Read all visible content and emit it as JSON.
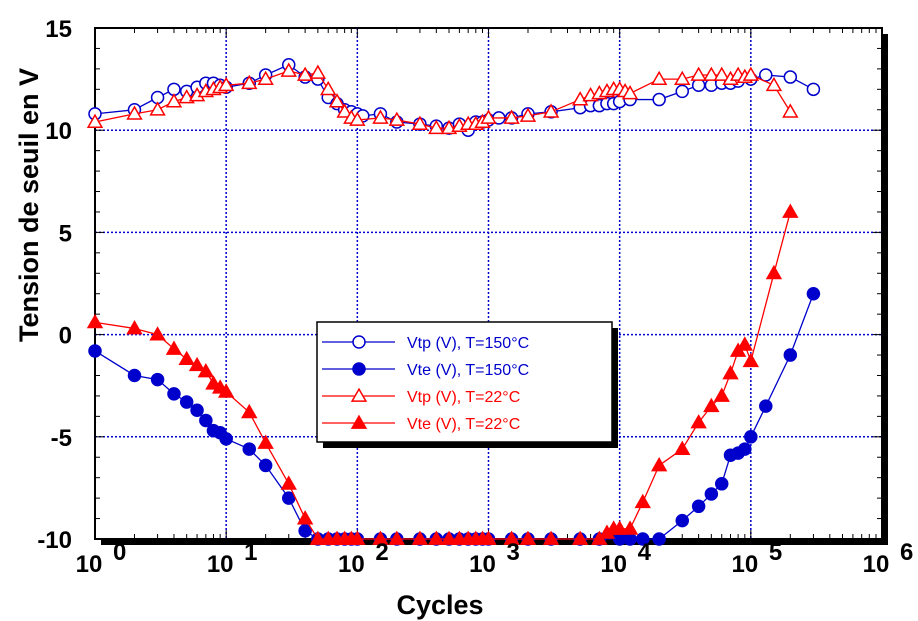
{
  "chart_data": {
    "type": "scatter",
    "title": "",
    "xlabel": "Cycles",
    "ylabel": "Tension de seuil en V",
    "xscale": "log",
    "xlim": [
      1,
      1000000
    ],
    "ylim": [
      -10,
      15
    ],
    "grid": true,
    "legend_position": "center",
    "x_ticks": [
      {
        "value": 1,
        "base": "10",
        "exp": "0"
      },
      {
        "value": 10,
        "base": "10",
        "exp": "1"
      },
      {
        "value": 100,
        "base": "10",
        "exp": "2"
      },
      {
        "value": 1000,
        "base": "10",
        "exp": "3"
      },
      {
        "value": 10000,
        "base": "10",
        "exp": "4"
      },
      {
        "value": 100000,
        "base": "10",
        "exp": "5"
      },
      {
        "value": 1000000,
        "base": "10",
        "exp": "6"
      }
    ],
    "y_ticks": [
      {
        "value": 15,
        "label": "15"
      },
      {
        "value": 10,
        "label": "10"
      },
      {
        "value": 5,
        "label": "5"
      },
      {
        "value": 0,
        "label": "0"
      },
      {
        "value": -5,
        "label": "-5"
      },
      {
        "value": -10,
        "label": "-10"
      }
    ],
    "series": [
      {
        "name": "Vtp (V), T=150°C",
        "color": "#0000cc",
        "marker": "circle-open",
        "x": [
          1,
          2,
          3,
          4,
          5,
          6,
          7,
          8,
          9,
          10,
          15,
          20,
          30,
          40,
          50,
          60,
          70,
          80,
          90,
          100,
          110,
          150,
          200,
          300,
          400,
          500,
          600,
          700,
          800,
          900,
          1000,
          1200,
          1500,
          2000,
          3000,
          5000,
          6000,
          7000,
          8000,
          9000,
          10000,
          12000,
          20000,
          30000,
          40000,
          50000,
          60000,
          70000,
          80000,
          100000,
          130000,
          200000,
          300000
        ],
        "y": [
          10.8,
          11,
          11.6,
          12,
          11.9,
          12.1,
          12.3,
          12.3,
          12.2,
          12.1,
          12.3,
          12.7,
          13.2,
          12.6,
          12.5,
          11.6,
          11.3,
          11,
          10.9,
          10.8,
          10.7,
          10.8,
          10.4,
          10.3,
          10.2,
          10.1,
          10.3,
          10,
          10.4,
          10.4,
          10.5,
          10.6,
          10.6,
          10.8,
          10.9,
          11.1,
          11.2,
          11.2,
          11.3,
          11.3,
          11.4,
          11.5,
          11.5,
          11.9,
          12.2,
          12.2,
          12.3,
          12.3,
          12.4,
          12.5,
          12.7,
          12.6,
          12
        ],
        "fill": "#ffffff"
      },
      {
        "name": "Vte (V), T=150°C",
        "color": "#0000cc",
        "marker": "circle-filled",
        "x": [
          1,
          2,
          3,
          4,
          5,
          6,
          7,
          8,
          9,
          10,
          15,
          20,
          30,
          40,
          50,
          60,
          70,
          80,
          90,
          100,
          150,
          200,
          300,
          400,
          500,
          600,
          700,
          800,
          900,
          1000,
          1500,
          2000,
          3000,
          5000,
          7000,
          10000,
          12000,
          15000,
          20000,
          30000,
          40000,
          50000,
          60000,
          70000,
          80000,
          90000,
          100000,
          130000,
          200000,
          300000
        ],
        "y": [
          -0.8,
          -2,
          -2.2,
          -2.9,
          -3.3,
          -3.7,
          -4.2,
          -4.7,
          -4.8,
          -5.1,
          -5.6,
          -6.4,
          -8,
          -9.6,
          -10,
          -10,
          -10,
          -10,
          -10,
          -10,
          -10,
          -10,
          -10,
          -10,
          -10,
          -10,
          -10,
          -10,
          -10,
          -10,
          -10,
          -10,
          -10,
          -10,
          -10,
          -10,
          -10,
          -10,
          -10,
          -9.1,
          -8.4,
          -7.8,
          -7.3,
          -5.9,
          -5.8,
          -5.6,
          -5,
          -3.5,
          -1,
          2
        ],
        "fill": "#0000cc"
      },
      {
        "name": "Vtp (V), T=22°C",
        "color": "#ff0000",
        "marker": "triangle-open",
        "x": [
          1,
          2,
          3,
          4,
          5,
          6,
          7,
          8,
          9,
          10,
          15,
          20,
          30,
          40,
          50,
          60,
          70,
          80,
          90,
          100,
          150,
          200,
          300,
          400,
          500,
          600,
          700,
          800,
          900,
          1000,
          1500,
          2000,
          3000,
          5000,
          6000,
          7000,
          8000,
          9000,
          10000,
          11000,
          12000,
          20000,
          30000,
          40000,
          50000,
          60000,
          70000,
          80000,
          90000,
          100000,
          150000,
          200000
        ],
        "y": [
          10.4,
          10.8,
          11,
          11.4,
          11.6,
          11.7,
          11.9,
          12,
          12.1,
          12.2,
          12.3,
          12.5,
          12.9,
          12.7,
          12.8,
          12,
          11.4,
          10.9,
          10.6,
          10.5,
          10.6,
          10.5,
          10.3,
          10.1,
          10.1,
          10.2,
          10.3,
          10.3,
          10.4,
          10.6,
          10.6,
          10.7,
          10.9,
          11.5,
          11.7,
          11.8,
          11.9,
          12,
          12,
          11.9,
          11.8,
          12.5,
          12.5,
          12.7,
          12.7,
          12.7,
          12.5,
          12.7,
          12.6,
          12.7,
          12.2,
          10.9
        ],
        "fill": "#ffffff"
      },
      {
        "name": "Vte (V), T=22°C",
        "color": "#ff0000",
        "marker": "triangle-filled",
        "x": [
          1,
          2,
          3,
          4,
          5,
          6,
          7,
          8,
          9,
          10,
          15,
          20,
          30,
          40,
          50,
          60,
          70,
          80,
          90,
          100,
          150,
          200,
          300,
          400,
          500,
          600,
          700,
          800,
          900,
          1000,
          1500,
          2000,
          3000,
          5000,
          7000,
          8000,
          9000,
          10000,
          12000,
          15000,
          20000,
          30000,
          40000,
          50000,
          60000,
          70000,
          80000,
          90000,
          100000,
          150000,
          200000
        ],
        "y": [
          0.6,
          0.3,
          0,
          -0.7,
          -1.2,
          -1.5,
          -1.8,
          -2.4,
          -2.6,
          -2.8,
          -3.8,
          -5.3,
          -7.3,
          -9,
          -10,
          -10,
          -10,
          -10,
          -10,
          -10,
          -10,
          -10,
          -10,
          -10,
          -10,
          -10,
          -10,
          -10,
          -10,
          -10,
          -10,
          -10,
          -10,
          -10,
          -10,
          -9.7,
          -9.5,
          -9.5,
          -9.5,
          -8.2,
          -6.4,
          -5.6,
          -4.3,
          -3.5,
          -3,
          -1.9,
          -0.8,
          -0.5,
          -1.3,
          3,
          6
        ],
        "fill": "#ff0000"
      }
    ]
  }
}
